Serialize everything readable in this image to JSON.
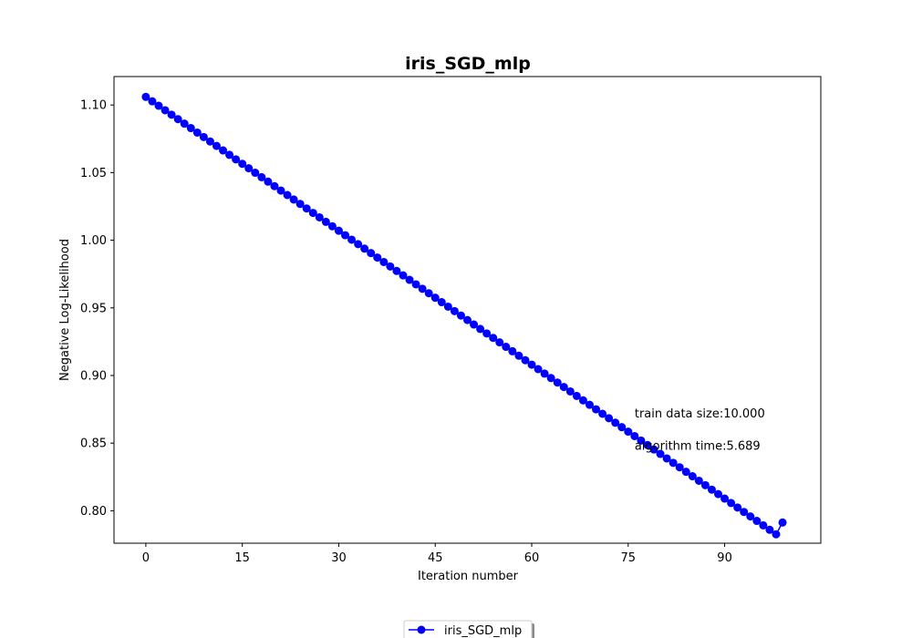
{
  "chart_data": {
    "type": "line",
    "title": "iris_SGD_mlp",
    "xlabel": "Iteration number",
    "ylabel": "Negative Log-Likelihood",
    "xlim": [
      -4.95,
      104.95
    ],
    "ylim": [
      0.776,
      1.121
    ],
    "xticks": [
      0,
      15,
      30,
      45,
      60,
      75,
      90
    ],
    "xtick_labels": [
      "0",
      "15",
      "30",
      "45",
      "60",
      "75",
      "90"
    ],
    "yticks": [
      0.8,
      0.85,
      0.9,
      0.95,
      1.0,
      1.05,
      1.1
    ],
    "ytick_labels": [
      "0.80",
      "0.85",
      "0.90",
      "0.95",
      "1.00",
      "1.05",
      "1.10"
    ],
    "grid": false,
    "legend_position": "bottom-center",
    "series": [
      {
        "name": "iris_SGD_mlp",
        "color": "#0000ff",
        "marker": "circle",
        "x": [
          0,
          1,
          2,
          3,
          4,
          5,
          6,
          7,
          8,
          9,
          10,
          11,
          12,
          13,
          14,
          15,
          16,
          17,
          18,
          19,
          20,
          21,
          22,
          23,
          24,
          25,
          26,
          27,
          28,
          29,
          30,
          31,
          32,
          33,
          34,
          35,
          36,
          37,
          38,
          39,
          40,
          41,
          42,
          43,
          44,
          45,
          46,
          47,
          48,
          49,
          50,
          51,
          52,
          53,
          54,
          55,
          56,
          57,
          58,
          59,
          60,
          61,
          62,
          63,
          64,
          65,
          66,
          67,
          68,
          69,
          70,
          71,
          72,
          73,
          74,
          75,
          76,
          77,
          78,
          79,
          80,
          81,
          82,
          83,
          84,
          85,
          86,
          87,
          88,
          89,
          90,
          91,
          92,
          93,
          94,
          95,
          96,
          97,
          98,
          99
        ],
        "y": [
          1.106,
          1.1027,
          1.0994,
          1.0961,
          1.0928,
          1.0895,
          1.0862,
          1.0829,
          1.0796,
          1.0763,
          1.073,
          1.0697,
          1.0664,
          1.0631,
          1.0598,
          1.0565,
          1.0532,
          1.0499,
          1.0466,
          1.0433,
          1.04,
          1.0367,
          1.0334,
          1.0301,
          1.0268,
          1.0235,
          1.0202,
          1.0169,
          1.0136,
          1.0103,
          1.007,
          1.0037,
          1.0004,
          0.9971,
          0.9938,
          0.9905,
          0.9872,
          0.9839,
          0.9806,
          0.9773,
          0.974,
          0.9707,
          0.9674,
          0.9641,
          0.9608,
          0.9575,
          0.9542,
          0.9509,
          0.9476,
          0.9443,
          0.941,
          0.9377,
          0.9344,
          0.9311,
          0.9278,
          0.9245,
          0.9212,
          0.9179,
          0.9146,
          0.9113,
          0.908,
          0.9047,
          0.9014,
          0.8981,
          0.8948,
          0.8915,
          0.8882,
          0.8849,
          0.8816,
          0.8783,
          0.875,
          0.8717,
          0.8684,
          0.8651,
          0.8618,
          0.8585,
          0.8552,
          0.8519,
          0.8486,
          0.8453,
          0.842,
          0.8387,
          0.8354,
          0.8321,
          0.8288,
          0.8255,
          0.8222,
          0.8189,
          0.8156,
          0.8123,
          0.809,
          0.8057,
          0.8024,
          0.7991,
          0.7958,
          0.7925,
          0.7892,
          0.7859,
          0.7826,
          0.7913
        ]
      }
    ],
    "annotations": [
      {
        "text": "train data size:10.000",
        "x": 76,
        "y": 0.869
      },
      {
        "text": "algorithm time:5.689",
        "x": 76,
        "y": 0.845
      }
    ]
  }
}
